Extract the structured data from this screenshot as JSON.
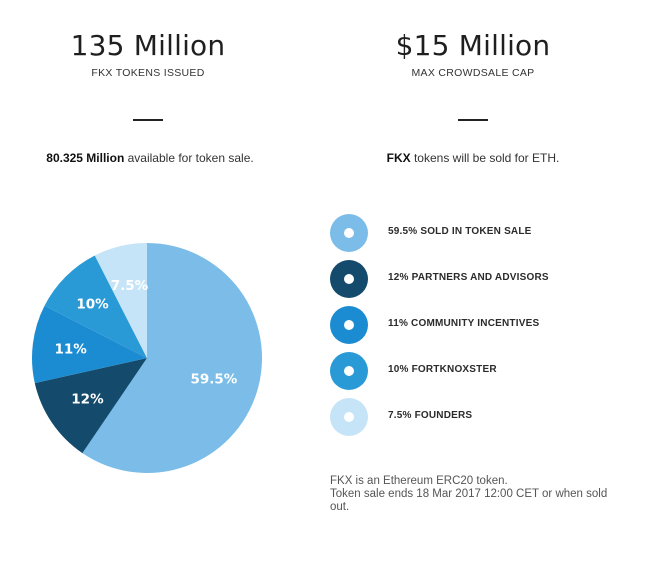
{
  "header": {
    "left": {
      "value": "135 Million",
      "caption": "FKX TOKENS ISSUED"
    },
    "right": {
      "value": "$15 Million",
      "caption": "MAX CROWDSALE CAP"
    }
  },
  "notes": {
    "left": {
      "bold": "80.325 Million",
      "text": " available for token sale."
    },
    "right": {
      "bold": "FKX",
      "text": " tokens will be sold for ETH."
    }
  },
  "chart_data": {
    "type": "pie",
    "slices": [
      {
        "label": "59.5%",
        "value": 59.5,
        "color": "#7bbde8"
      },
      {
        "label": "12%",
        "value": 12,
        "color": "#144a6b"
      },
      {
        "label": "11%",
        "value": 11,
        "color": "#1c8cd2"
      },
      {
        "label": "10%",
        "value": 10,
        "color": "#2a9ad6"
      },
      {
        "label": "7.5%",
        "value": 7.5,
        "color": "#c6e4f7"
      }
    ],
    "legend": [
      {
        "label": "59.5% SOLD IN TOKEN SALE",
        "color": "#7bbde8"
      },
      {
        "label": "12% PARTNERS AND ADVISORS",
        "color": "#144a6b"
      },
      {
        "label": "11% COMMUNITY INCENTIVES",
        "color": "#1c8cd2"
      },
      {
        "label": "10% FORTKNOXSTER",
        "color": "#2a9ad6"
      },
      {
        "label": "7.5% FOUNDERS",
        "color": "#c6e4f7"
      }
    ],
    "legend_position": "right"
  },
  "footnote": {
    "line1": "FKX is an Ethereum ERC20 token.",
    "line2": "Token sale ends 18 Mar 2017 12:00 CET or when sold out."
  }
}
